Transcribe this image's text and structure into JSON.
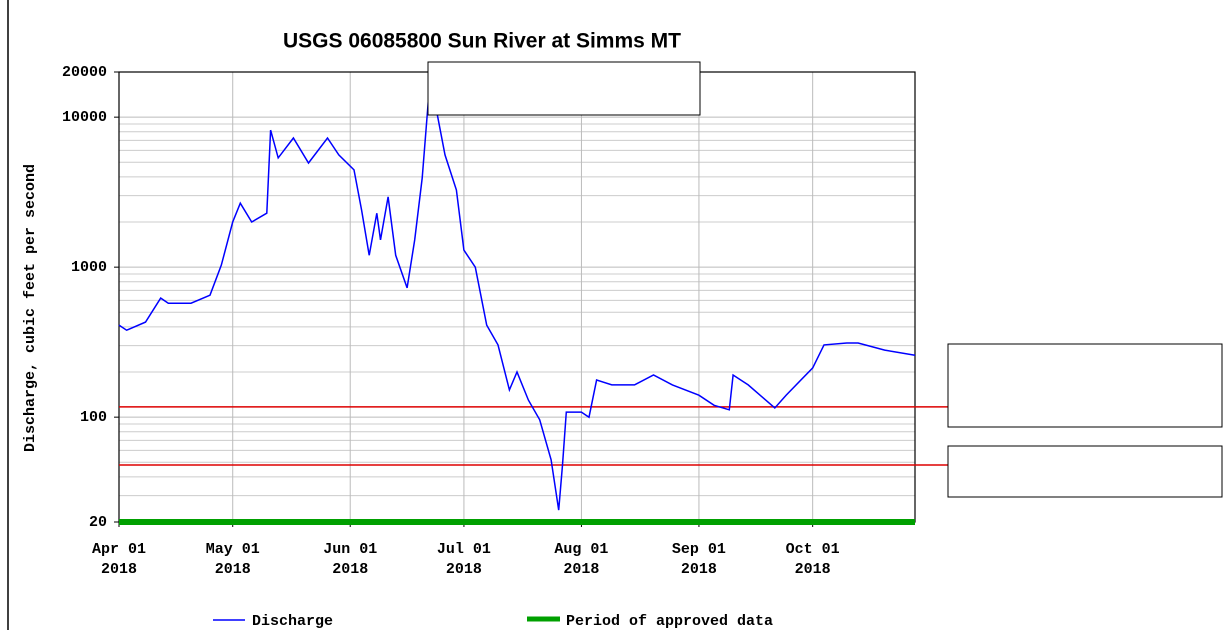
{
  "chart_data": {
    "type": "line",
    "title": "USGS 06085800 Sun River at Simms MT",
    "ylabel": "Discharge, cubic feet per second",
    "log_y": true,
    "grid": true,
    "x": [
      "2018-04-01",
      "2018-04-03",
      "2018-04-08",
      "2018-04-12",
      "2018-04-14",
      "2018-04-20",
      "2018-04-25",
      "2018-04-28",
      "2018-05-01",
      "2018-05-03",
      "2018-05-06",
      "2018-05-10",
      "2018-05-11",
      "2018-05-13",
      "2018-05-17",
      "2018-05-21",
      "2018-05-26",
      "2018-05-29",
      "2018-06-02",
      "2018-06-04",
      "2018-06-06",
      "2018-06-08",
      "2018-06-09",
      "2018-06-11",
      "2018-06-13",
      "2018-06-16",
      "2018-06-18",
      "2018-06-20",
      "2018-06-22",
      "2018-06-24",
      "2018-06-26",
      "2018-06-29",
      "2018-07-01",
      "2018-07-04",
      "2018-07-07",
      "2018-07-10",
      "2018-07-13",
      "2018-07-15",
      "2018-07-18",
      "2018-07-21",
      "2018-07-24",
      "2018-07-26",
      "2018-07-27",
      "2018-07-28",
      "2018-08-01",
      "2018-08-03",
      "2018-08-05",
      "2018-08-09",
      "2018-08-15",
      "2018-08-20",
      "2018-08-25",
      "2018-09-01",
      "2018-09-05",
      "2018-09-09",
      "2018-09-10",
      "2018-09-14",
      "2018-09-18",
      "2018-09-21",
      "2018-09-24",
      "2018-10-01",
      "2018-10-04",
      "2018-10-10",
      "2018-10-13",
      "2018-10-20",
      "2018-10-28"
    ],
    "series": [
      {
        "name": "Discharge",
        "color": "#0000ff",
        "values": [
          411,
          380,
          430,
          622,
          575,
          575,
          650,
          1030,
          2000,
          2670,
          2000,
          2290,
          8200,
          5350,
          7260,
          4950,
          7260,
          5600,
          4450,
          2400,
          1200,
          2290,
          1520,
          2940,
          1200,
          727,
          1520,
          3930,
          17100,
          10300,
          5600,
          3270,
          1300,
          1000,
          411,
          303,
          152,
          200,
          130,
          96,
          52,
          24,
          48,
          108,
          108,
          100,
          177,
          164,
          164,
          191,
          164,
          140,
          120,
          112,
          191,
          164,
          134,
          115,
          140,
          213,
          303,
          312,
          312,
          280,
          259
        ]
      }
    ],
    "approved": {
      "name": "Period of approved data",
      "color": "#00a000",
      "start": "2018-04-01",
      "end": "2018-10-28"
    },
    "reference_lines": [
      117,
      48
    ],
    "reference_color": "#dd0000",
    "xlim": [
      "2018-04-01",
      "2018-10-28"
    ],
    "xticks": [
      {
        "value": "2018-04-01",
        "label": "Apr 01\n2018"
      },
      {
        "value": "2018-05-01",
        "label": "May 01\n2018"
      },
      {
        "value": "2018-06-01",
        "label": "Jun 01\n2018"
      },
      {
        "value": "2018-07-01",
        "label": "Jul 01\n2018"
      },
      {
        "value": "2018-08-01",
        "label": "Aug 01\n2018"
      },
      {
        "value": "2018-09-01",
        "label": "Sep 01\n2018"
      },
      {
        "value": "2018-10-01",
        "label": "Oct 01\n2018"
      }
    ],
    "ylim": [
      20,
      20000
    ],
    "yticks": [
      20,
      100,
      1000,
      10000,
      20000
    ],
    "minor_yticks": [
      30,
      40,
      50,
      60,
      70,
      80,
      90,
      200,
      300,
      400,
      500,
      600,
      700,
      800,
      900,
      2000,
      3000,
      4000,
      5000,
      6000,
      7000,
      8000,
      9000
    ]
  }
}
